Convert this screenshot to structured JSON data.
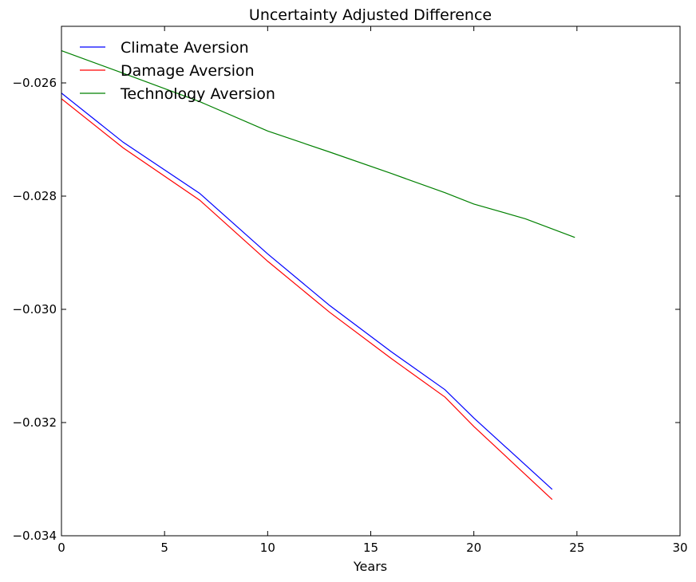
{
  "chart_data": {
    "type": "line",
    "title": "Uncertainty Adjusted Difference",
    "xlabel": "Years",
    "ylabel": "",
    "xlim": [
      0,
      30
    ],
    "ylim": [
      -0.034,
      -0.025
    ],
    "xticks": [
      0,
      5,
      10,
      15,
      20,
      25,
      30
    ],
    "xtick_labels": [
      "0",
      "5",
      "10",
      "15",
      "20",
      "25",
      "30"
    ],
    "yticks": [
      -0.034,
      -0.032,
      -0.03,
      -0.028,
      -0.026
    ],
    "ytick_labels": [
      "−0.034",
      "−0.032",
      "−0.030",
      "−0.028",
      "−0.026"
    ],
    "grid": false,
    "legend_position": "top-left",
    "series": [
      {
        "name": "Climate Aversion",
        "color": "#0000ff",
        "x": [
          0,
          3,
          6.7,
          10,
          13,
          16,
          18.6,
          20,
          23.8
        ],
        "y": [
          -0.02618,
          -0.02705,
          -0.02795,
          -0.02902,
          -0.02993,
          -0.03075,
          -0.03142,
          -0.03192,
          -0.03318
        ]
      },
      {
        "name": "Damage Aversion",
        "color": "#ff0000",
        "x": [
          0,
          3,
          6.7,
          10,
          13,
          16,
          18.6,
          20,
          23.8
        ],
        "y": [
          -0.02628,
          -0.02715,
          -0.02807,
          -0.02915,
          -0.03005,
          -0.03087,
          -0.03155,
          -0.03207,
          -0.03336
        ]
      },
      {
        "name": "Technology Aversion",
        "color": "#008000",
        "x": [
          0,
          3,
          6.7,
          10,
          13,
          16,
          18.6,
          20,
          22.5,
          24.9
        ],
        "y": [
          -0.02543,
          -0.02583,
          -0.02633,
          -0.02685,
          -0.02722,
          -0.0276,
          -0.02794,
          -0.02814,
          -0.0284,
          -0.02873
        ]
      }
    ]
  }
}
